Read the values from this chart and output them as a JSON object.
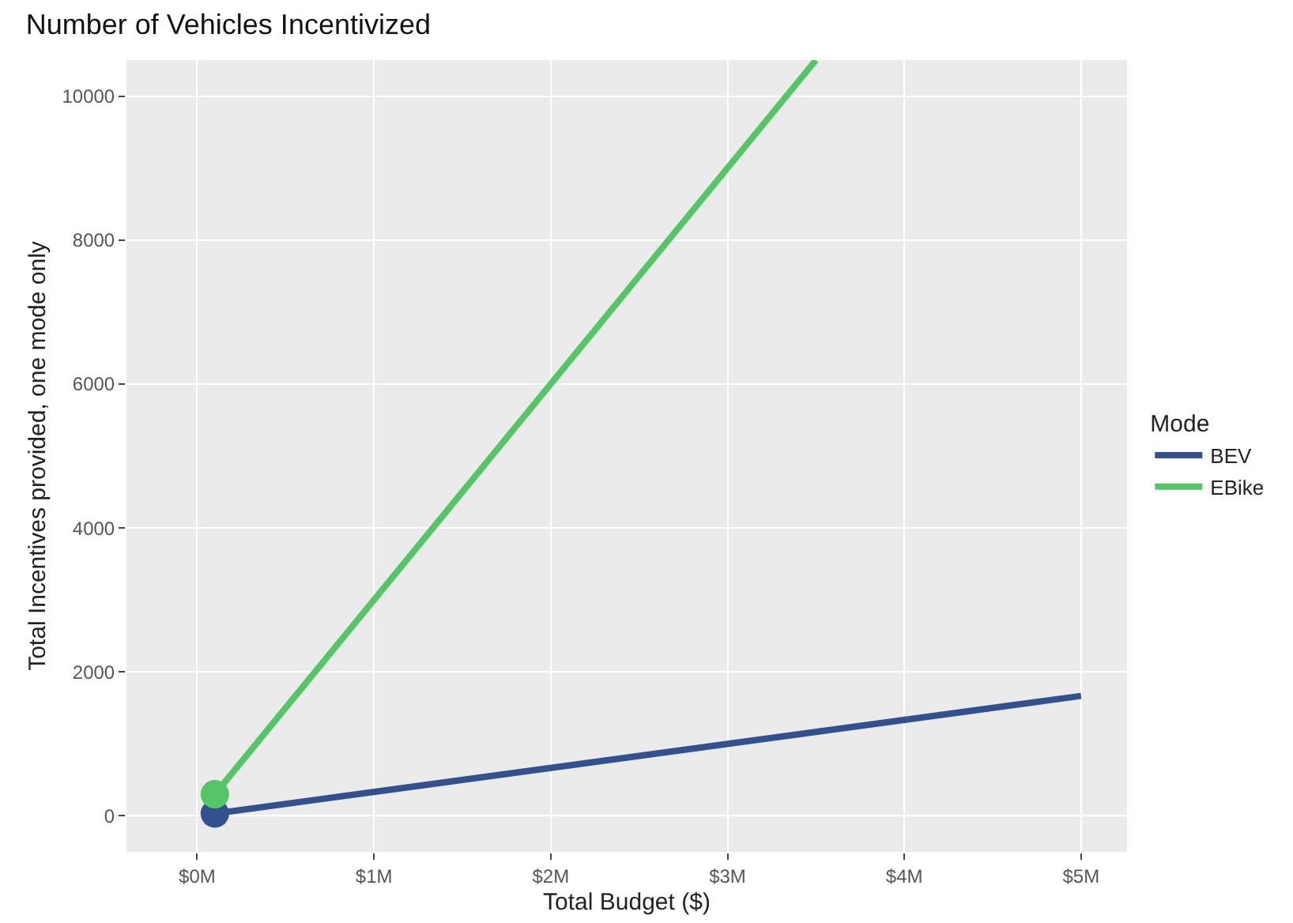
{
  "chart_data": {
    "type": "line",
    "title": "Number of Vehicles Incentivized",
    "xlabel": "Total Budget ($)",
    "ylabel": "Total Incentives provided, one mode only",
    "legend_title": "Mode",
    "xlim": [
      -0.4,
      5.26
    ],
    "xticks": [
      {
        "value": 0,
        "label": "$0M"
      },
      {
        "value": 1,
        "label": "$1M"
      },
      {
        "value": 2,
        "label": "$2M"
      },
      {
        "value": 3,
        "label": "$3M"
      },
      {
        "value": 4,
        "label": "$4M"
      },
      {
        "value": 5,
        "label": "$5M"
      }
    ],
    "ylim": [
      -500,
      10500
    ],
    "yticks": [
      0,
      2000,
      4000,
      6000,
      8000,
      10000
    ],
    "series": [
      {
        "name": "BEV",
        "color": "#33508f",
        "x": [
          0.1,
          5
        ],
        "values": [
          33,
          1667
        ]
      },
      {
        "name": "EBike",
        "color": "#55c667",
        "x": [
          0.1,
          3.5
        ],
        "values": [
          300,
          10500
        ]
      },
      {
        "type": "scatter",
        "color": "#33508f",
        "x": [
          0.1
        ],
        "values": [
          33
        ]
      },
      {
        "type": "scatter",
        "color": "#55c667",
        "x": [
          0.1
        ],
        "values": [
          300
        ]
      }
    ],
    "grid": true,
    "legend": "right",
    "line_style": "solid"
  }
}
